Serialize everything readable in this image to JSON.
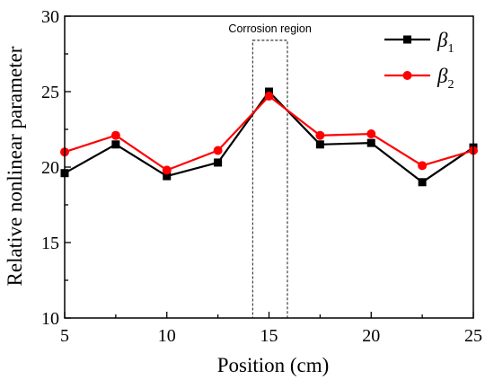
{
  "chart_data": {
    "type": "line",
    "title": "",
    "xlabel": "Position (cm)",
    "ylabel": "Relative nonlinear parameter",
    "xlim": [
      5,
      25
    ],
    "ylim": [
      10,
      30
    ],
    "xticks": [
      5,
      10,
      15,
      20,
      25
    ],
    "yticks": [
      10,
      15,
      20,
      25,
      30
    ],
    "x": [
      5,
      7.5,
      10,
      12.5,
      15,
      17.5,
      20,
      22.5,
      25
    ],
    "series": [
      {
        "name": "β",
        "subscript": "1",
        "color": "#000000",
        "marker": "square",
        "values": [
          19.6,
          21.5,
          19.4,
          20.3,
          25.0,
          21.5,
          21.6,
          19.0,
          21.3
        ]
      },
      {
        "name": "β",
        "subscript": "2",
        "color": "#ff0000",
        "marker": "circle",
        "values": [
          21.0,
          22.1,
          19.8,
          21.1,
          24.7,
          22.1,
          22.2,
          20.1,
          21.1
        ]
      }
    ],
    "annotation": {
      "text": "Corrosion region",
      "x_range": [
        14.2,
        15.9
      ],
      "y_range": [
        10,
        28.4
      ],
      "style": "dashed-box"
    },
    "legend_position": "top-right",
    "grid": false
  }
}
